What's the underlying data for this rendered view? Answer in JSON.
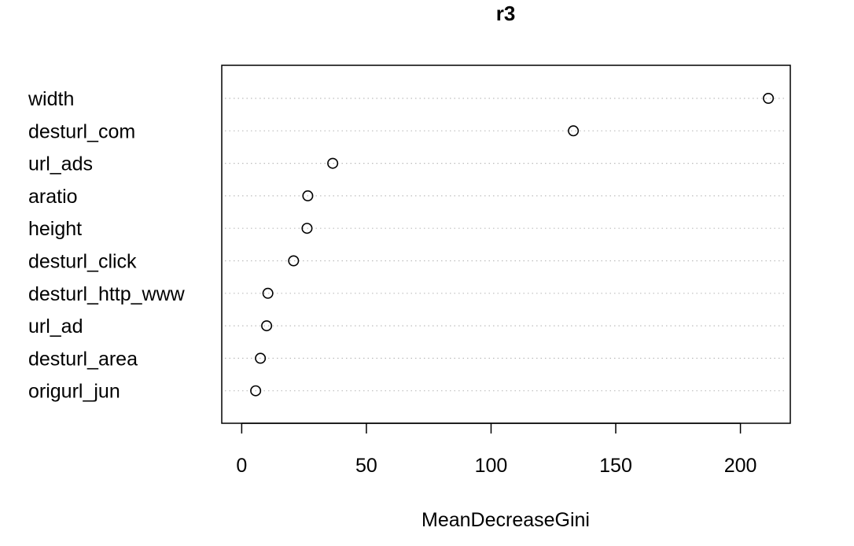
{
  "chart_data": {
    "type": "scatter",
    "title": "r3",
    "xlabel": "MeanDecreaseGini",
    "ylabel": "",
    "xlim": [
      -8,
      220
    ],
    "x_ticks": [
      0,
      50,
      100,
      150,
      200
    ],
    "x_tick_labels": [
      "0",
      "50",
      "100",
      "150",
      "200"
    ],
    "categories": [
      "width",
      "desturl_com",
      "url_ads",
      "aratio",
      "height",
      "desturl_click",
      "desturl_http_www",
      "url_ad",
      "desturl_area",
      "origurl_jun"
    ],
    "values": [
      211.2,
      133.0,
      36.5,
      26.5,
      26.2,
      20.8,
      10.5,
      10.0,
      7.5,
      5.6
    ],
    "grid": "dotted horizontal lines per category",
    "marker": "open circle",
    "colors": {
      "marks": "#000000",
      "grid": "#bdbdbd",
      "background": "#ffffff"
    }
  }
}
